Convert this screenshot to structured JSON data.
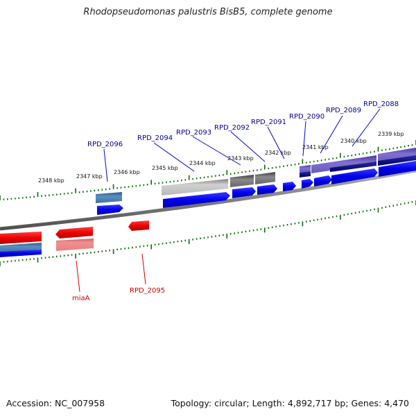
{
  "title": "Rhodopseudomonas palustris BisB5, complete genome",
  "accession": "Accession: NC_007958",
  "topology": "Topology: circular; Length: 4,892,717 bp; Genes: 4,470",
  "colors": {
    "ruler_tick": "#007000",
    "backbone": "#808080",
    "forward_cds": "#0000ee",
    "reverse_cds": "#ee0000",
    "gene_label_forward": "#00008b",
    "gene_label_reverse": "#cc0000"
  },
  "kbp_labels": [
    "2348 kbp",
    "2347 kbp",
    "2346 kbp",
    "2345 kbp",
    "2344 kbp",
    "2343 kbp",
    "2342 kbp",
    "2341 kbp",
    "2340 kbp",
    "2339 kbp"
  ],
  "gene_labels": {
    "forward": [
      "RPD_2096",
      "RPD_2094",
      "RPD_2093",
      "RPD_2092",
      "RPD_2091",
      "RPD_2090",
      "RPD_2089",
      "RPD_2088"
    ],
    "reverse": [
      "miaA",
      "RPD_2095"
    ]
  }
}
